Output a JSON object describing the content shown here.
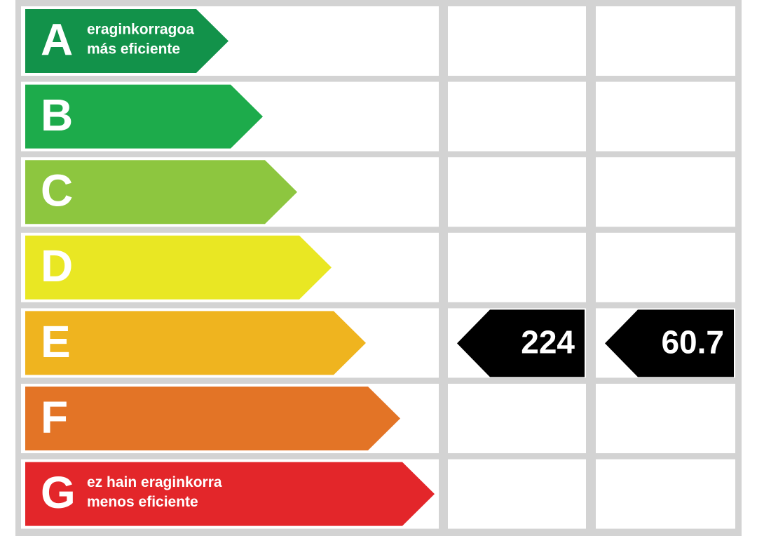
{
  "rows": [
    {
      "letter": "A",
      "color": "#12924a",
      "labels": [
        "eraginkorragoa",
        "más eficiente"
      ]
    },
    {
      "letter": "B",
      "color": "#1dab4b"
    },
    {
      "letter": "C",
      "color": "#8dc63f"
    },
    {
      "letter": "D",
      "color": "#e9e723"
    },
    {
      "letter": "E",
      "color": "#efb41f",
      "values": [
        224,
        60.7
      ]
    },
    {
      "letter": "F",
      "color": "#e37426"
    },
    {
      "letter": "G",
      "color": "#e3262a",
      "labels": [
        "ez hain eraginkorra",
        "menos eficiente"
      ]
    }
  ]
}
